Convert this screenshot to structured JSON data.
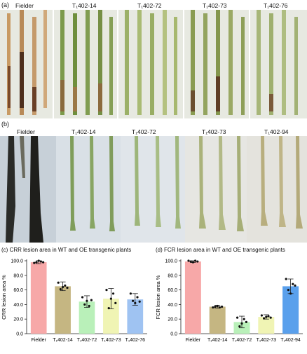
{
  "panel_a": {
    "letter": "(a)",
    "labels": [
      "Fielder",
      "T₁402-14",
      "T₁402-72",
      "T₁402-73",
      "T₁402-76"
    ]
  },
  "panel_b": {
    "letter": "(b)",
    "labels": [
      "Fielder",
      "T₁402-14",
      "T₁402-72",
      "T₁402-73",
      "T₁402-94"
    ]
  },
  "panel_c": {
    "letter": "(c)",
    "title": "CRR lesion area in WT and OE transgenic plants"
  },
  "panel_d": {
    "letter": "(d)",
    "title": "FCR lesion area in WT and OE transgenic plants"
  },
  "colors": {
    "fielder": "#f7a8a8",
    "l14": "#c5b682",
    "l72": "#b9f0b9",
    "l73": "#f0f4b4",
    "l76": "#9fc3f2",
    "l94": "#5aa0ec",
    "photo_bg_a": "#e9ebe3",
    "photo_bg_b": "#cfd7df"
  },
  "chart_data": [
    {
      "type": "bar",
      "ylabel": "CRR lesion area %",
      "ylim": [
        0,
        100
      ],
      "yticks": [
        "0.0",
        "20.0",
        "40.0",
        "60.0",
        "80.0",
        "100.0"
      ],
      "categories": [
        "Fielder",
        "T₁402-14",
        "T₁402-72",
        "T₁402-73",
        "T₁402-76"
      ],
      "values": [
        98,
        65,
        44,
        48,
        47
      ],
      "errors": [
        2,
        6,
        8,
        14,
        8
      ],
      "points": [
        [
          97,
          98,
          100,
          99,
          98
        ],
        [
          70,
          61,
          64,
          66,
          63
        ],
        [
          50,
          40,
          45,
          38,
          46
        ],
        [
          60,
          35,
          48,
          55,
          42
        ],
        [
          55,
          45,
          42,
          50,
          44
        ]
      ],
      "bar_colors": [
        "#f7a8a8",
        "#c5b682",
        "#b9f0b9",
        "#f0f4b4",
        "#9fc3f2"
      ]
    },
    {
      "type": "bar",
      "ylabel": "FCR lesion area %",
      "ylim": [
        0,
        100
      ],
      "yticks": [
        "0.0",
        "20.0",
        "40.0",
        "60.0",
        "80.0",
        "100.0"
      ],
      "categories": [
        "Fielder",
        "T₁402-14",
        "T₁402-72",
        "T₁402-73",
        "T₁402-94"
      ],
      "values": [
        99,
        37,
        16,
        23,
        65
      ],
      "errors": [
        1.5,
        2,
        8,
        3,
        10
      ],
      "points": [
        [
          100,
          99,
          98,
          100,
          99
        ],
        [
          36,
          37,
          38,
          36,
          37
        ],
        [
          22,
          10,
          14,
          20,
          16
        ],
        [
          25,
          21,
          23,
          24,
          22
        ],
        [
          75,
          60,
          55,
          68,
          66
        ]
      ],
      "bar_colors": [
        "#f7a8a8",
        "#c5b682",
        "#b9f0b9",
        "#f0f4b4",
        "#5aa0ec"
      ]
    }
  ]
}
